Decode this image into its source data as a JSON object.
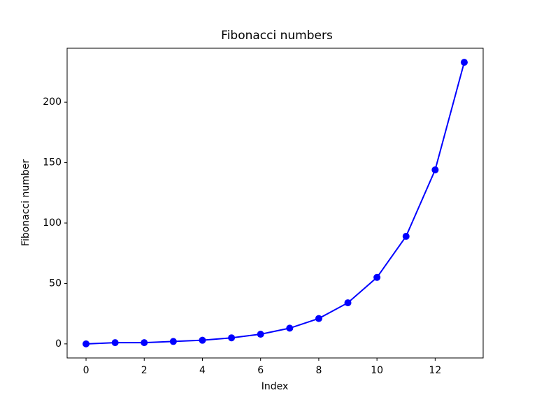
{
  "chart_data": {
    "type": "line",
    "title": "Fibonacci numbers",
    "x_label": "Index",
    "y_label": "Fibonacci number",
    "x": [
      0,
      1,
      2,
      3,
      4,
      5,
      6,
      7,
      8,
      9,
      10,
      11,
      12,
      13
    ],
    "values": [
      0,
      1,
      1,
      2,
      3,
      5,
      8,
      13,
      21,
      34,
      55,
      89,
      144,
      233
    ],
    "color": "#0000ff",
    "marker": true,
    "xlim": [
      -0.65,
      13.65
    ],
    "xticks": [
      0,
      2,
      4,
      6,
      8,
      10,
      12
    ],
    "ylim": [
      -11.65,
      244.65
    ],
    "yticks": [
      0,
      50,
      100,
      150,
      200
    ],
    "grid": false
  }
}
